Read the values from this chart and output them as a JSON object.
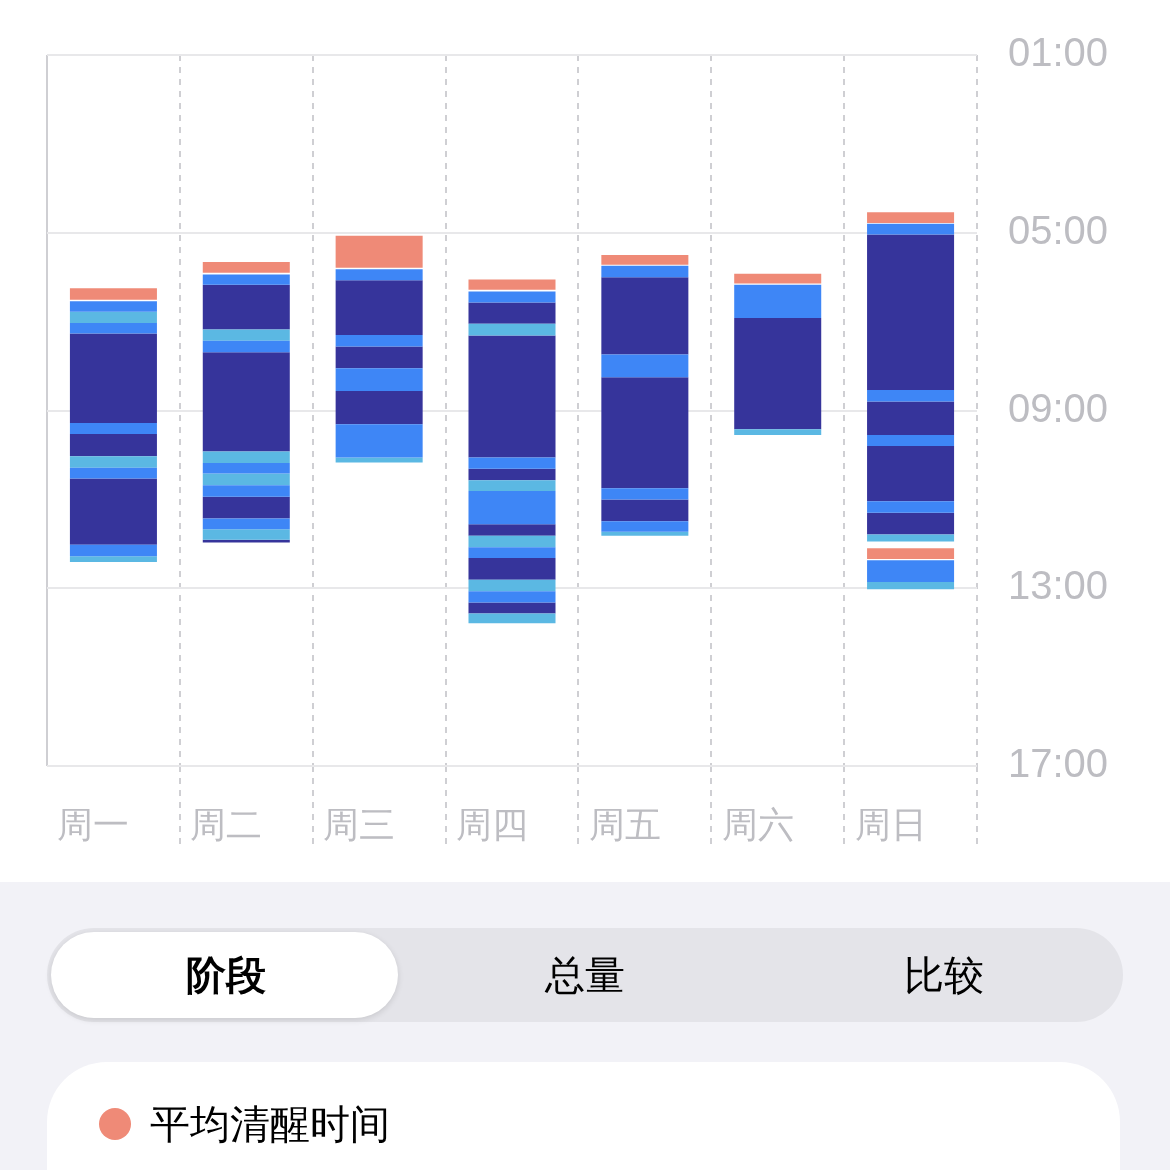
{
  "chart_data": {
    "type": "bar",
    "categories": [
      "周一",
      "周二",
      "周三",
      "周四",
      "周五",
      "周六",
      "周日"
    ],
    "ylim": [
      17,
      1
    ],
    "yticks": [
      {
        "value": 1,
        "label": "01:00"
      },
      {
        "value": 5,
        "label": "05:00"
      },
      {
        "value": 9,
        "label": "09:00"
      },
      {
        "value": 13,
        "label": "13:00"
      },
      {
        "value": 17,
        "label": "17:00"
      }
    ],
    "grid": true,
    "series": [
      {
        "color": "#ef8a77",
        "base": [
          6.25,
          5.66,
          5.07,
          6.05,
          5.5,
          5.92,
          4.54
        ],
        "values": [
          0.26,
          0.24,
          0.72,
          0.23,
          0.22,
          0.22,
          0.24
        ]
      },
      {
        "color": "#ef8a77",
        "base": [
          null,
          null,
          null,
          null,
          null,
          null,
          12.1
        ],
        "values": [
          null,
          null,
          null,
          null,
          null,
          null,
          0.24
        ]
      },
      {
        "color": "#3e86f6",
        "base": [
          6.54,
          5.94,
          5.82,
          6.32,
          5.74,
          6.17,
          4.8
        ],
        "values": [
          0.24,
          0.23,
          0.25,
          0.25,
          0.26,
          0.75,
          0.24
        ]
      },
      {
        "color": "#3e86f6",
        "base": [
          7.03,
          7.43,
          7.3,
          10.06,
          7.74,
          null,
          8.54
        ],
        "values": [
          0.24,
          0.26,
          0.26,
          0.25,
          0.51,
          null,
          0.26
        ]
      },
      {
        "color": "#3e86f6",
        "base": [
          9.28,
          10.18,
          8.05,
          10.81,
          10.75,
          null,
          9.55
        ],
        "values": [
          0.25,
          0.24,
          0.51,
          0.75,
          0.25,
          null,
          0.25
        ]
      },
      {
        "color": "#3e86f6",
        "base": [
          10.29,
          10.68,
          9.31,
          12.08,
          11.49,
          null,
          11.04
        ],
        "values": [
          0.24,
          0.26,
          0.75,
          0.24,
          0.24,
          null,
          0.26
        ]
      },
      {
        "color": "#3e86f6",
        "base": [
          12.02,
          11.43,
          null,
          13.07,
          null,
          null,
          12.37
        ],
        "values": [
          0.26,
          0.24,
          null,
          0.25,
          null,
          null,
          0.49
        ]
      },
      {
        "color": "#5bb8e3",
        "base": [
          6.78,
          7.18,
          10.06,
          7.05,
          11.73,
          9.42,
          11.79
        ],
        "values": [
          0.25,
          0.25,
          0.11,
          0.26,
          0.09,
          0.13,
          0.16
        ]
      },
      {
        "color": "#5bb8e3",
        "base": [
          10.03,
          9.92,
          null,
          10.57,
          null,
          null,
          12.86
        ],
        "values": [
          0.26,
          0.26,
          null,
          0.24,
          null,
          null,
          0.16
        ]
      },
      {
        "color": "#5bb8e3",
        "base": [
          12.28,
          10.42,
          null,
          11.82,
          null,
          null,
          null
        ],
        "values": [
          0.13,
          0.26,
          null,
          0.26,
          null,
          null,
          null
        ]
      },
      {
        "color": "#5bb8e3",
        "base": [
          null,
          11.67,
          null,
          12.81,
          null,
          null,
          null
        ],
        "values": [
          null,
          0.24,
          null,
          0.26,
          null,
          null,
          null
        ]
      },
      {
        "color": "#5bb8e3",
        "base": [
          null,
          null,
          null,
          13.57,
          null,
          null,
          null
        ],
        "values": [
          null,
          null,
          null,
          0.22,
          null,
          null,
          null
        ]
      },
      {
        "color": "#36349b",
        "base": [
          7.27,
          6.17,
          6.07,
          6.57,
          6.0,
          6.92,
          5.04
        ],
        "values": [
          2.01,
          1.01,
          1.23,
          0.48,
          1.74,
          2.5,
          3.5
        ]
      },
      {
        "color": "#36349b",
        "base": [
          9.53,
          7.69,
          7.56,
          7.31,
          8.25,
          null,
          8.8
        ],
        "values": [
          0.5,
          2.23,
          0.49,
          2.75,
          2.5,
          null,
          0.75
        ]
      },
      {
        "color": "#36349b",
        "base": [
          10.53,
          10.94,
          8.56,
          10.31,
          11.0,
          null,
          9.8
        ],
        "values": [
          1.49,
          0.49,
          0.75,
          0.26,
          0.49,
          null,
          1.24
        ]
      },
      {
        "color": "#36349b",
        "base": [
          null,
          11.91,
          null,
          11.56,
          null,
          null,
          11.3
        ],
        "values": [
          null,
          0.06,
          null,
          0.26,
          null,
          null,
          0.49
        ]
      },
      {
        "color": "#36349b",
        "base": [
          null,
          null,
          null,
          12.32,
          null,
          null,
          null
        ],
        "values": [
          null,
          null,
          null,
          0.49,
          null,
          null,
          null
        ]
      },
      {
        "color": "#36349b",
        "base": [
          null,
          null,
          null,
          13.32,
          null,
          null,
          null
        ],
        "values": [
          null,
          null,
          null,
          0.25,
          null,
          null,
          null
        ]
      }
    ],
    "annotations": [
      "阶段",
      "总量",
      "比较",
      "平均清醒时间"
    ]
  }
}
